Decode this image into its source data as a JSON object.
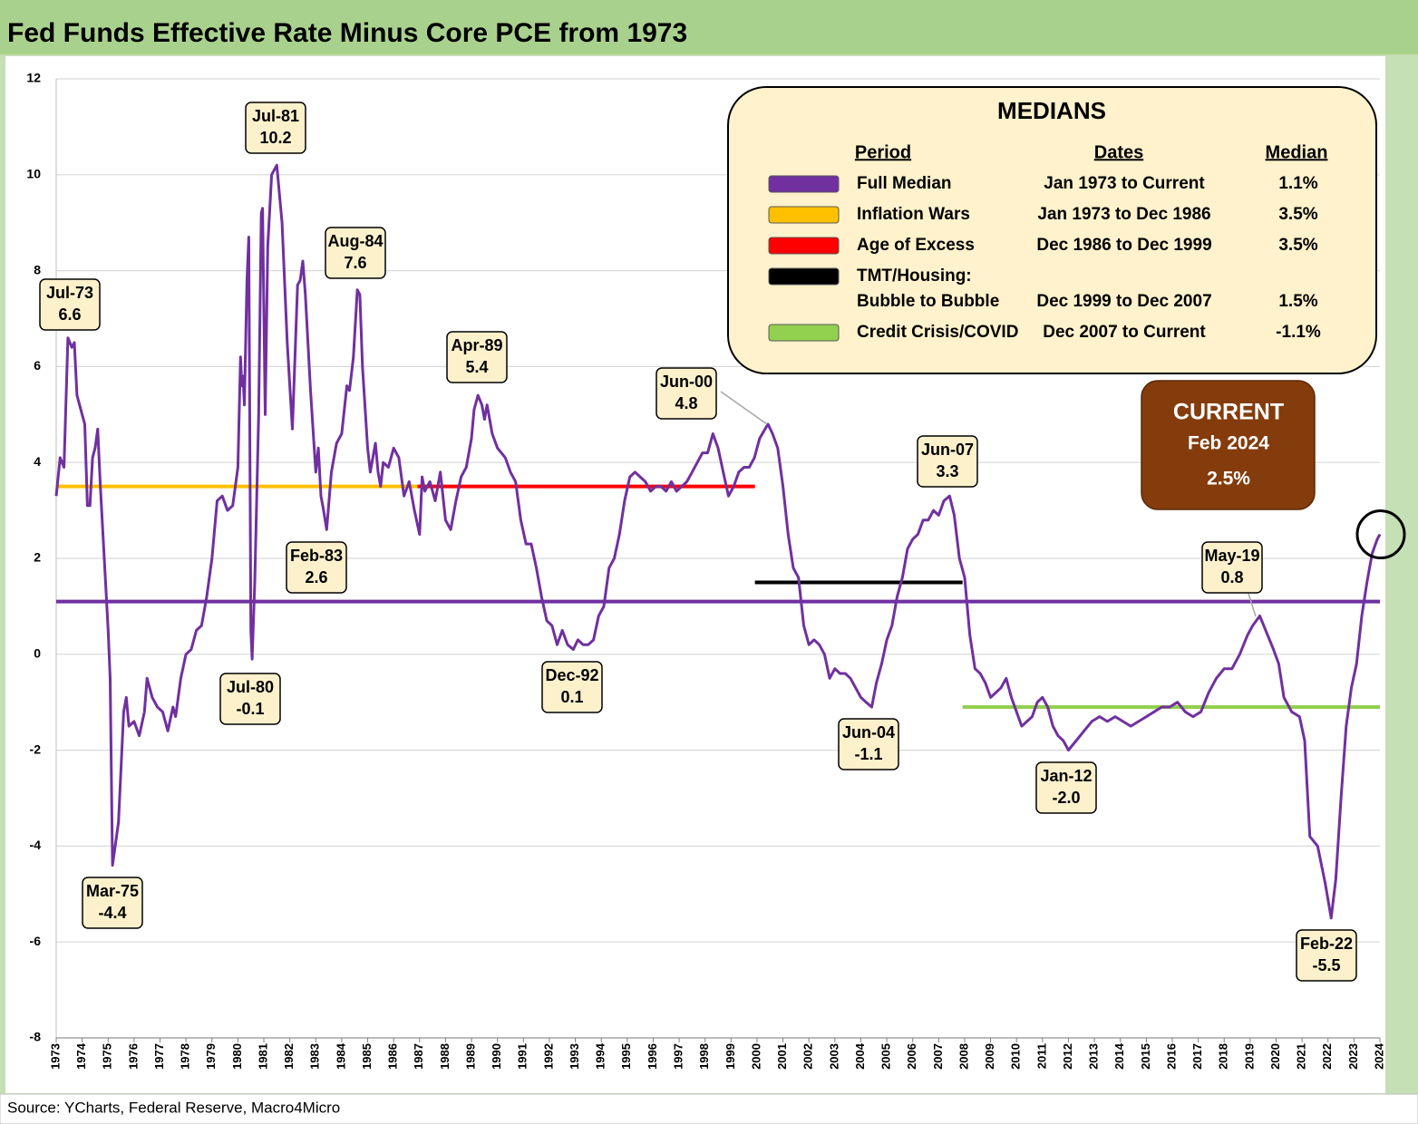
{
  "chart_data": {
    "type": "line",
    "title": "Fed Funds Effective Rate Minus Core PCE from 1973",
    "source": "Source: YCharts, Federal Reserve, Macro4Micro",
    "xlim": [
      1973,
      2024
    ],
    "xticks": [
      1973,
      1974,
      1975,
      1976,
      1977,
      1978,
      1979,
      1980,
      1981,
      1982,
      1983,
      1984,
      1985,
      1986,
      1987,
      1988,
      1989,
      1990,
      1991,
      1992,
      1993,
      1994,
      1995,
      1996,
      1997,
      1998,
      1999,
      2000,
      2001,
      2002,
      2003,
      2004,
      2005,
      2006,
      2007,
      2008,
      2009,
      2010,
      2011,
      2012,
      2013,
      2014,
      2015,
      2016,
      2017,
      2018,
      2019,
      2020,
      2021,
      2022,
      2023,
      2024
    ],
    "ylim": [
      -8,
      12
    ],
    "yticks": [
      -8,
      -6,
      -4,
      -2,
      0,
      2,
      4,
      6,
      8,
      10,
      12
    ],
    "grid": true,
    "series": [
      {
        "color": "#7030a0",
        "x": [
          1973.0,
          1973.15,
          1973.3,
          1973.45,
          1973.6,
          1973.7,
          1973.8,
          1974.0,
          1974.1,
          1974.2,
          1974.3,
          1974.4,
          1974.5,
          1974.6,
          1974.7,
          1975.0,
          1975.08,
          1975.17,
          1975.4,
          1975.6,
          1975.7,
          1975.8,
          1976.0,
          1976.2,
          1976.4,
          1976.5,
          1976.7,
          1976.9,
          1977.1,
          1977.3,
          1977.5,
          1977.6,
          1977.8,
          1978.0,
          1978.2,
          1978.4,
          1978.6,
          1978.8,
          1979.0,
          1979.2,
          1979.4,
          1979.6,
          1979.8,
          1980.0,
          1980.1,
          1980.15,
          1980.2,
          1980.25,
          1980.35,
          1980.42,
          1980.5,
          1980.55,
          1980.65,
          1980.8,
          1980.9,
          1980.95,
          1981.05,
          1981.15,
          1981.3,
          1981.5,
          1981.7,
          1981.9,
          1982.1,
          1982.3,
          1982.4,
          1982.5,
          1982.6,
          1982.8,
          1983.0,
          1983.1,
          1983.2,
          1983.3,
          1983.42,
          1983.6,
          1983.8,
          1984.0,
          1984.2,
          1984.3,
          1984.45,
          1984.6,
          1984.7,
          1984.8,
          1985.0,
          1985.1,
          1985.3,
          1985.4,
          1985.5,
          1985.6,
          1985.8,
          1986.0,
          1986.2,
          1986.4,
          1986.6,
          1986.8,
          1987.0,
          1987.1,
          1987.2,
          1987.4,
          1987.6,
          1987.8,
          1988.0,
          1988.2,
          1988.4,
          1988.6,
          1988.8,
          1989.0,
          1989.1,
          1989.25,
          1989.4,
          1989.5,
          1989.6,
          1989.8,
          1990.0,
          1990.3,
          1990.5,
          1990.7,
          1990.9,
          1991.1,
          1991.3,
          1991.5,
          1991.7,
          1991.9,
          1992.1,
          1992.3,
          1992.5,
          1992.7,
          1992.92,
          1993.1,
          1993.3,
          1993.5,
          1993.7,
          1993.9,
          1994.1,
          1994.3,
          1994.5,
          1994.7,
          1994.9,
          1995.1,
          1995.3,
          1995.5,
          1995.7,
          1995.9,
          1996.1,
          1996.3,
          1996.5,
          1996.7,
          1996.9,
          1997.1,
          1997.3,
          1997.5,
          1997.7,
          1997.9,
          1998.1,
          1998.3,
          1998.5,
          1998.7,
          1998.9,
          1999.1,
          1999.3,
          1999.5,
          1999.7,
          1999.9,
          2000.1,
          2000.42,
          2000.6,
          2000.8,
          2001.0,
          2001.2,
          2001.4,
          2001.6,
          2001.8,
          2002.0,
          2002.2,
          2002.4,
          2002.6,
          2002.8,
          2003.0,
          2003.2,
          2003.4,
          2003.6,
          2003.8,
          2004.0,
          2004.2,
          2004.42,
          2004.6,
          2004.8,
          2005.0,
          2005.2,
          2005.4,
          2005.6,
          2005.8,
          2006.0,
          2006.2,
          2006.4,
          2006.6,
          2006.8,
          2007.0,
          2007.2,
          2007.42,
          2007.6,
          2007.8,
          2008.0,
          2008.2,
          2008.4,
          2008.6,
          2008.8,
          2009.0,
          2009.2,
          2009.4,
          2009.6,
          2009.8,
          2010.0,
          2010.2,
          2010.4,
          2010.6,
          2010.8,
          2011.0,
          2011.2,
          2011.4,
          2011.6,
          2011.8,
          2012.0,
          2012.3,
          2012.6,
          2012.9,
          2013.2,
          2013.5,
          2013.8,
          2014.1,
          2014.4,
          2014.7,
          2015.0,
          2015.3,
          2015.6,
          2015.9,
          2016.2,
          2016.5,
          2016.8,
          2017.1,
          2017.4,
          2017.7,
          2018.0,
          2018.3,
          2018.6,
          2018.9,
          2019.1,
          2019.37,
          2019.6,
          2019.9,
          2020.1,
          2020.3,
          2020.6,
          2020.9,
          2021.1,
          2021.3,
          2021.6,
          2021.9,
          2022.12,
          2022.3,
          2022.5,
          2022.7,
          2022.9,
          2023.1,
          2023.3,
          2023.5,
          2023.7,
          2023.9,
          2024.0
        ],
        "values": [
          3.3,
          4.1,
          3.9,
          6.6,
          6.4,
          6.5,
          5.4,
          5.0,
          4.8,
          3.1,
          3.1,
          4.1,
          4.3,
          4.7,
          3.5,
          0.5,
          -0.5,
          -4.4,
          -3.5,
          -1.2,
          -0.9,
          -1.5,
          -1.4,
          -1.7,
          -1.2,
          -0.5,
          -0.9,
          -1.1,
          -1.2,
          -1.6,
          -1.1,
          -1.3,
          -0.5,
          0.0,
          0.1,
          0.5,
          0.6,
          1.2,
          2.0,
          3.2,
          3.3,
          3.0,
          3.1,
          3.9,
          6.2,
          5.6,
          5.8,
          5.2,
          7.8,
          8.7,
          0.5,
          -0.1,
          1.5,
          5.0,
          9.2,
          9.3,
          5.0,
          8.5,
          10.0,
          10.2,
          9.0,
          6.5,
          4.7,
          7.7,
          7.8,
          8.2,
          7.5,
          5.5,
          3.8,
          4.3,
          3.3,
          3.0,
          2.6,
          3.8,
          4.4,
          4.6,
          5.6,
          5.5,
          6.2,
          7.6,
          7.5,
          6.0,
          4.3,
          3.8,
          4.4,
          3.8,
          3.5,
          4.0,
          3.9,
          4.3,
          4.1,
          3.3,
          3.6,
          3.0,
          2.5,
          3.7,
          3.4,
          3.6,
          3.2,
          3.8,
          2.8,
          2.6,
          3.2,
          3.7,
          3.9,
          4.5,
          5.1,
          5.4,
          5.2,
          4.9,
          5.2,
          4.6,
          4.3,
          4.1,
          3.8,
          3.6,
          2.8,
          2.3,
          2.3,
          1.8,
          1.2,
          0.7,
          0.6,
          0.2,
          0.5,
          0.2,
          0.1,
          0.3,
          0.2,
          0.2,
          0.3,
          0.8,
          1.0,
          1.8,
          2.0,
          2.5,
          3.2,
          3.7,
          3.8,
          3.7,
          3.6,
          3.4,
          3.5,
          3.5,
          3.4,
          3.6,
          3.4,
          3.5,
          3.6,
          3.8,
          4.0,
          4.2,
          4.2,
          4.6,
          4.3,
          3.8,
          3.3,
          3.5,
          3.8,
          3.9,
          3.9,
          4.1,
          4.5,
          4.8,
          4.6,
          4.3,
          3.5,
          2.5,
          1.8,
          1.6,
          0.6,
          0.2,
          0.3,
          0.2,
          0.0,
          -0.5,
          -0.3,
          -0.4,
          -0.4,
          -0.5,
          -0.7,
          -0.9,
          -1.0,
          -1.1,
          -0.6,
          -0.2,
          0.3,
          0.6,
          1.2,
          1.6,
          2.2,
          2.4,
          2.5,
          2.8,
          2.8,
          3.0,
          2.9,
          3.2,
          3.3,
          2.9,
          2.0,
          1.6,
          0.4,
          -0.3,
          -0.4,
          -0.6,
          -0.9,
          -0.8,
          -0.7,
          -0.5,
          -0.9,
          -1.2,
          -1.5,
          -1.4,
          -1.3,
          -1.0,
          -0.9,
          -1.1,
          -1.5,
          -1.7,
          -1.8,
          -2.0,
          -1.8,
          -1.6,
          -1.4,
          -1.3,
          -1.4,
          -1.3,
          -1.4,
          -1.5,
          -1.4,
          -1.3,
          -1.2,
          -1.1,
          -1.1,
          -1.0,
          -1.2,
          -1.3,
          -1.2,
          -0.8,
          -0.5,
          -0.3,
          -0.3,
          0.0,
          0.4,
          0.6,
          0.8,
          0.5,
          0.1,
          -0.2,
          -0.9,
          -1.2,
          -1.3,
          -1.8,
          -3.8,
          -4.0,
          -4.8,
          -5.5,
          -4.7,
          -3.0,
          -1.5,
          -0.7,
          -0.2,
          0.8,
          1.5,
          2.1,
          2.4,
          2.5
        ]
      }
    ],
    "annotations": [
      {
        "label": "Jul-73",
        "value": 6.6
      },
      {
        "label": "Mar-75",
        "value": -4.4
      },
      {
        "label": "Jul-80",
        "value": -0.1
      },
      {
        "label": "Jul-81",
        "value": 10.2
      },
      {
        "label": "Feb-83",
        "value": 2.6
      },
      {
        "label": "Aug-84",
        "value": 7.6
      },
      {
        "label": "Apr-89",
        "value": 5.4
      },
      {
        "label": "Dec-92",
        "value": 0.1
      },
      {
        "label": "Jun-00",
        "value": 4.8
      },
      {
        "label": "Jun-04",
        "value": -1.1
      },
      {
        "label": "Jun-07",
        "value": 3.3
      },
      {
        "label": "Jan-12",
        "value": -2.0,
        "value_label": "-2.0"
      },
      {
        "label": "May-19",
        "value": 0.8
      },
      {
        "label": "Feb-22",
        "value": -5.5
      }
    ],
    "medians_box": {
      "title": "MEDIANS",
      "headers": [
        "Period",
        "Dates",
        "Median"
      ],
      "rows": [
        {
          "period": [
            "Full Median"
          ],
          "dates": "Jan 1973 to Current",
          "value": 1.1,
          "value_label": "1.1%",
          "color": "#7030a0",
          "x": [
            1973,
            2024
          ]
        },
        {
          "period": [
            "Inflation Wars"
          ],
          "dates": "Jan 1973 to Dec 1986",
          "value": 3.5,
          "value_label": "3.5%",
          "color": "#ffc000",
          "x": [
            1973,
            1986.92
          ]
        },
        {
          "period": [
            "Age of Excess"
          ],
          "dates": "Dec 1986 to Dec 1999",
          "value": 3.5,
          "value_label": "3.5%",
          "color": "#ff0000",
          "x": [
            1986.92,
            1999.92
          ]
        },
        {
          "period": [
            "TMT/Housing:",
            "Bubble to Bubble"
          ],
          "dates": "Dec 1999 to Dec 2007",
          "value": 1.5,
          "value_label": "1.5%",
          "color": "#000000",
          "x": [
            1999.92,
            2007.92
          ]
        },
        {
          "period": [
            "Credit Crisis/COVID"
          ],
          "dates": "Dec 2007 to Current",
          "value": -1.1,
          "value_label": "-1.1%",
          "color": "#92d050",
          "x": [
            2007.92,
            2024
          ]
        }
      ]
    },
    "current": {
      "title": "CURRENT",
      "date": "Feb 2024",
      "value": 2.5,
      "value_label": "2.5%"
    }
  }
}
